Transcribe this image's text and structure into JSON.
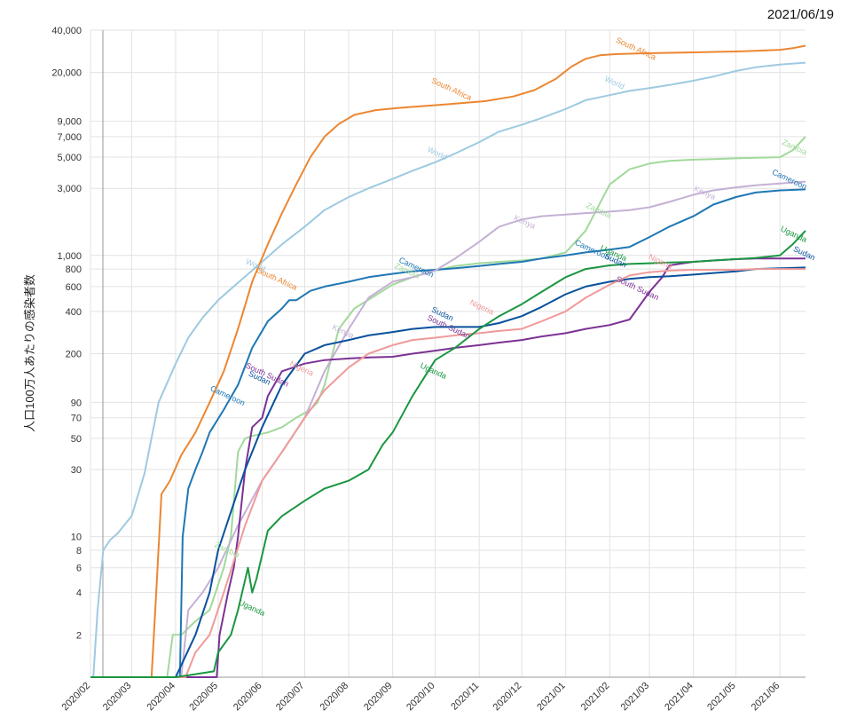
{
  "date_stamp": "2021/06/19",
  "chart_data": {
    "type": "line",
    "title": "",
    "xlabel": "",
    "ylabel": "人口100万人あたりの感染者数",
    "y_scale": "log",
    "ylim": [
      1,
      40000
    ],
    "xlim": [
      "2020-02-01",
      "2021-06-19"
    ],
    "grid": true,
    "legend": "none",
    "x_ticks": [
      "2020/02",
      "2020/03",
      "2020/04",
      "2020/05",
      "2020/06",
      "2020/07",
      "2020/08",
      "2020/09",
      "2020/10",
      "2020/11",
      "2020/12",
      "2021/01",
      "2021/02",
      "2021/03",
      "2021/04",
      "2021/05",
      "2021/06"
    ],
    "y_ticks": [
      2,
      4,
      6,
      8,
      10,
      30,
      50,
      70,
      90,
      200,
      400,
      600,
      800,
      1000,
      3000,
      5000,
      7000,
      9000,
      20000,
      40000
    ],
    "y_tick_labels": [
      "2",
      "4",
      "6",
      "8",
      "10",
      "30",
      "50",
      "70",
      "90",
      "200",
      "400",
      "600",
      "800",
      "1,000",
      "3,000",
      "5,000",
      "7,000",
      "9,000",
      "20,000",
      "40,000"
    ],
    "series": [
      {
        "name": "World",
        "color": "#9ecae1",
        "x": [
          "2020-02-01",
          "2020-02-03",
          "2020-02-06",
          "2020-02-10",
          "2020-02-15",
          "2020-02-20",
          "2020-03-01",
          "2020-03-10",
          "2020-03-20",
          "2020-04-01",
          "2020-04-10",
          "2020-04-20",
          "2020-05-01",
          "2020-05-15",
          "2020-06-01",
          "2020-06-15",
          "2020-07-01",
          "2020-07-15",
          "2020-08-01",
          "2020-08-15",
          "2020-09-01",
          "2020-09-15",
          "2020-10-01",
          "2020-10-15",
          "2020-11-01",
          "2020-11-15",
          "2020-12-01",
          "2020-12-15",
          "2021-01-01",
          "2021-01-15",
          "2021-02-01",
          "2021-02-15",
          "2021-03-01",
          "2021-03-15",
          "2021-04-01",
          "2021-04-15",
          "2021-05-01",
          "2021-05-15",
          "2021-06-01",
          "2021-06-19"
        ],
        "y": [
          1,
          1,
          3,
          8,
          9.5,
          10.5,
          14,
          28,
          90,
          170,
          260,
          360,
          480,
          640,
          900,
          1200,
          1600,
          2100,
          2600,
          3000,
          3500,
          4000,
          4600,
          5300,
          6400,
          7600,
          8500,
          9500,
          11000,
          12700,
          13800,
          14800,
          15500,
          16300,
          17500,
          18700,
          20500,
          21800,
          22800,
          23500
        ],
        "labels": [
          {
            "text": "World",
            "x": "2020-05-20",
            "y": 880
          },
          {
            "text": "World",
            "x": "2020-09-25",
            "y": 5500
          },
          {
            "text": "World",
            "x": "2021-01-28",
            "y": 17500
          }
        ]
      },
      {
        "name": "South Africa",
        "color": "#ec8631",
        "x": [
          "2020-02-01",
          "2020-03-15",
          "2020-03-18",
          "2020-03-22",
          "2020-03-28",
          "2020-04-05",
          "2020-04-15",
          "2020-04-25",
          "2020-05-05",
          "2020-05-15",
          "2020-05-25",
          "2020-06-05",
          "2020-06-15",
          "2020-06-25",
          "2020-07-05",
          "2020-07-15",
          "2020-07-25",
          "2020-08-05",
          "2020-08-20",
          "2020-09-05",
          "2020-09-25",
          "2020-10-15",
          "2020-11-05",
          "2020-11-25",
          "2020-12-10",
          "2020-12-25",
          "2021-01-05",
          "2021-01-15",
          "2021-01-25",
          "2021-02-05",
          "2021-02-20",
          "2021-03-15",
          "2021-04-01",
          "2021-04-15",
          "2021-05-01",
          "2021-05-15",
          "2021-06-01",
          "2021-06-10",
          "2021-06-19"
        ],
        "y": [
          1,
          1,
          3.5,
          20,
          25,
          38,
          55,
          90,
          150,
          300,
          650,
          1200,
          2000,
          3200,
          5000,
          7000,
          8600,
          10000,
          10800,
          11200,
          11600,
          12000,
          12500,
          13500,
          15000,
          18000,
          22000,
          25000,
          26500,
          27000,
          27300,
          27600,
          27800,
          28000,
          28200,
          28500,
          29000,
          29800,
          31000
        ],
        "labels": [
          {
            "text": "South Africa",
            "x": "2020-05-28",
            "y": 760
          },
          {
            "text": "South Africa",
            "x": "2020-09-28",
            "y": 17000
          },
          {
            "text": "South Africa",
            "x": "2021-02-05",
            "y": 33000
          }
        ]
      },
      {
        "name": "Zambia",
        "color": "#a1d99b",
        "x": [
          "2020-02-01",
          "2020-03-26",
          "2020-03-30",
          "2020-04-05",
          "2020-04-15",
          "2020-04-25",
          "2020-05-05",
          "2020-05-10",
          "2020-05-15",
          "2020-05-20",
          "2020-05-25",
          "2020-06-05",
          "2020-06-15",
          "2020-06-25",
          "2020-07-05",
          "2020-07-10",
          "2020-07-15",
          "2020-07-25",
          "2020-08-05",
          "2020-08-20",
          "2020-09-01",
          "2020-09-15",
          "2020-10-01",
          "2020-10-15",
          "2020-11-01",
          "2020-11-15",
          "2020-12-01",
          "2020-12-15",
          "2021-01-01",
          "2021-01-15",
          "2021-02-01",
          "2021-02-15",
          "2021-03-01",
          "2021-03-15",
          "2021-04-01",
          "2021-04-15",
          "2021-05-01",
          "2021-05-15",
          "2021-06-01",
          "2021-06-10",
          "2021-06-19"
        ],
        "y": [
          1,
          1,
          2,
          2,
          2.5,
          3,
          6,
          10,
          40,
          50,
          52,
          55,
          60,
          70,
          80,
          90,
          120,
          300,
          420,
          520,
          620,
          700,
          780,
          840,
          880,
          900,
          920,
          950,
          1050,
          1500,
          3200,
          4100,
          4500,
          4700,
          4800,
          4850,
          4900,
          4950,
          5000,
          5600,
          7000
        ],
        "labels": [
          {
            "text": "Zambia",
            "x": "2020-04-28",
            "y": 8.5
          },
          {
            "text": "Zambia",
            "x": "2020-09-02",
            "y": 820
          },
          {
            "text": "Zambia",
            "x": "2021-01-15",
            "y": 2200
          },
          {
            "text": "Zambia",
            "x": "2021-06-02",
            "y": 6200
          }
        ]
      },
      {
        "name": "Cameroon",
        "color": "#1f77b4",
        "x": [
          "2020-02-01",
          "2020-04-04",
          "2020-04-06",
          "2020-04-10",
          "2020-04-15",
          "2020-04-20",
          "2020-04-25",
          "2020-05-05",
          "2020-05-15",
          "2020-05-25",
          "2020-06-05",
          "2020-06-15",
          "2020-06-20",
          "2020-06-25",
          "2020-07-05",
          "2020-07-15",
          "2020-08-01",
          "2020-08-15",
          "2020-09-01",
          "2020-09-15",
          "2020-10-01",
          "2020-10-15",
          "2020-11-01",
          "2020-11-15",
          "2020-12-01",
          "2020-12-15",
          "2021-01-01",
          "2021-01-15",
          "2021-02-01",
          "2021-02-15",
          "2021-03-01",
          "2021-03-15",
          "2021-04-01",
          "2021-04-15",
          "2021-05-01",
          "2021-05-15",
          "2021-06-01",
          "2021-06-19"
        ],
        "y": [
          1,
          1,
          10,
          22,
          30,
          40,
          55,
          80,
          120,
          220,
          340,
          420,
          480,
          480,
          560,
          600,
          650,
          700,
          740,
          770,
          790,
          810,
          840,
          870,
          900,
          950,
          1000,
          1050,
          1100,
          1150,
          1350,
          1600,
          1900,
          2300,
          2600,
          2800,
          2900,
          2950
        ],
        "labels": [
          {
            "text": "Cameroon",
            "x": "2020-04-25",
            "y": 110
          },
          {
            "text": "Cameroon",
            "x": "2020-09-05",
            "y": 900
          },
          {
            "text": "Cameroon",
            "x": "2021-01-07",
            "y": 1200
          },
          {
            "text": "Cameroon",
            "x": "2021-05-26",
            "y": 3800
          }
        ]
      },
      {
        "name": "Kenya",
        "color": "#c5b0d5",
        "x": [
          "2020-02-01",
          "2020-04-05",
          "2020-04-10",
          "2020-04-20",
          "2020-05-01",
          "2020-05-15",
          "2020-06-01",
          "2020-06-15",
          "2020-07-01",
          "2020-07-15",
          "2020-08-01",
          "2020-08-15",
          "2020-09-01",
          "2020-09-15",
          "2020-10-01",
          "2020-10-15",
          "2020-11-01",
          "2020-11-15",
          "2020-12-01",
          "2020-12-15",
          "2021-01-01",
          "2021-01-15",
          "2021-02-01",
          "2021-02-15",
          "2021-03-01",
          "2021-03-15",
          "2021-04-01",
          "2021-04-15",
          "2021-05-01",
          "2021-05-15",
          "2021-06-01",
          "2021-06-19"
        ],
        "y": [
          1,
          1,
          3,
          4,
          6,
          12,
          25,
          40,
          70,
          150,
          300,
          500,
          650,
          700,
          780,
          950,
          1250,
          1600,
          1800,
          1900,
          1950,
          2000,
          2050,
          2100,
          2200,
          2400,
          2700,
          2900,
          3050,
          3150,
          3250,
          3350
        ],
        "labels": [
          {
            "text": "Kenya",
            "x": "2020-07-20",
            "y": 300
          },
          {
            "text": "Kenya",
            "x": "2020-11-25",
            "y": 1800
          },
          {
            "text": "Kenya",
            "x": "2021-04-01",
            "y": 2900
          }
        ]
      },
      {
        "name": "South Sudan",
        "color": "#7b3294",
        "x": [
          "2020-02-01",
          "2020-04-30",
          "2020-05-02",
          "2020-05-08",
          "2020-05-12",
          "2020-05-15",
          "2020-05-20",
          "2020-05-25",
          "2020-06-01",
          "2020-06-05",
          "2020-06-15",
          "2020-07-01",
          "2020-07-15",
          "2020-08-01",
          "2020-08-15",
          "2020-09-01",
          "2020-09-15",
          "2020-10-01",
          "2020-10-15",
          "2020-11-01",
          "2020-11-15",
          "2020-12-01",
          "2020-12-15",
          "2021-01-01",
          "2021-01-15",
          "2021-02-01",
          "2021-02-15",
          "2021-03-01",
          "2021-03-10",
          "2021-03-15",
          "2021-04-01",
          "2021-04-15",
          "2021-05-01",
          "2021-05-15",
          "2021-06-01",
          "2021-06-19"
        ],
        "y": [
          1,
          1,
          2,
          4,
          6,
          10,
          30,
          60,
          70,
          100,
          150,
          170,
          180,
          185,
          188,
          190,
          200,
          210,
          220,
          230,
          240,
          250,
          265,
          280,
          300,
          320,
          350,
          550,
          700,
          850,
          900,
          920,
          940,
          950,
          950,
          950
        ],
        "labels": [
          {
            "text": "South Sudan",
            "x": "2020-05-20",
            "y": 160
          },
          {
            "text": "South Sudan",
            "x": "2020-09-25",
            "y": 350
          },
          {
            "text": "South Sudan",
            "x": "2021-02-05",
            "y": 660
          }
        ]
      },
      {
        "name": "Sudan",
        "color": "#08519c",
        "x": [
          "2020-02-01",
          "2020-04-01",
          "2020-04-15",
          "2020-04-25",
          "2020-05-01",
          "2020-05-10",
          "2020-05-20",
          "2020-06-01",
          "2020-06-15",
          "2020-07-01",
          "2020-07-15",
          "2020-08-01",
          "2020-08-15",
          "2020-09-01",
          "2020-09-15",
          "2020-10-01",
          "2020-10-15",
          "2020-11-01",
          "2020-11-15",
          "2020-12-01",
          "2020-12-15",
          "2021-01-01",
          "2021-01-15",
          "2021-02-01",
          "2021-02-15",
          "2021-03-01",
          "2021-03-15",
          "2021-04-01",
          "2021-04-15",
          "2021-05-01",
          "2021-05-15",
          "2021-06-01",
          "2021-06-19"
        ],
        "y": [
          1,
          1,
          2,
          4,
          8,
          15,
          30,
          60,
          120,
          200,
          230,
          250,
          270,
          285,
          300,
          310,
          310,
          310,
          330,
          370,
          430,
          530,
          600,
          650,
          680,
          700,
          710,
          730,
          750,
          770,
          800,
          810,
          820
        ],
        "labels": [
          {
            "text": "Sudan",
            "x": "2020-05-22",
            "y": 140
          },
          {
            "text": "Sudan",
            "x": "2020-09-28",
            "y": 400
          },
          {
            "text": "Sudan",
            "x": "2021-01-28",
            "y": 960
          },
          {
            "text": "Sudan",
            "x": "2021-06-10",
            "y": 1080
          }
        ]
      },
      {
        "name": "Nigeria",
        "color": "#ef9a9a",
        "x": [
          "2020-02-01",
          "2020-04-08",
          "2020-04-15",
          "2020-04-25",
          "2020-05-05",
          "2020-05-20",
          "2020-06-01",
          "2020-06-15",
          "2020-07-01",
          "2020-07-15",
          "2020-08-01",
          "2020-08-15",
          "2020-09-01",
          "2020-09-15",
          "2020-10-01",
          "2020-10-15",
          "2020-11-01",
          "2020-11-15",
          "2020-12-01",
          "2020-12-15",
          "2021-01-01",
          "2021-01-15",
          "2021-02-01",
          "2021-02-15",
          "2021-03-01",
          "2021-03-15",
          "2021-04-01",
          "2021-04-15",
          "2021-05-01",
          "2021-05-15",
          "2021-06-01",
          "2021-06-19"
        ],
        "y": [
          1,
          1,
          1.5,
          2,
          4,
          12,
          25,
          40,
          70,
          110,
          160,
          200,
          230,
          250,
          260,
          270,
          280,
          290,
          300,
          340,
          400,
          500,
          620,
          720,
          760,
          780,
          790,
          790,
          790,
          800,
          800,
          800
        ],
        "labels": [
          {
            "text": "Nigeria",
            "x": "2020-06-20",
            "y": 165
          },
          {
            "text": "Nigeria",
            "x": "2020-10-25",
            "y": 450
          },
          {
            "text": "Nigeria",
            "x": "2021-02-28",
            "y": 950
          }
        ]
      },
      {
        "name": "Uganda",
        "color": "#1a9641",
        "x": [
          "2020-02-01",
          "2020-04-01",
          "2020-04-15",
          "2020-04-28",
          "2020-05-01",
          "2020-05-10",
          "2020-05-15",
          "2020-05-22",
          "2020-05-25",
          "2020-05-28",
          "2020-06-05",
          "2020-06-15",
          "2020-07-01",
          "2020-07-15",
          "2020-08-01",
          "2020-08-15",
          "2020-08-25",
          "2020-09-01",
          "2020-09-15",
          "2020-10-01",
          "2020-10-15",
          "2020-11-01",
          "2020-11-15",
          "2020-12-01",
          "2020-12-15",
          "2021-01-01",
          "2021-01-15",
          "2021-02-01",
          "2021-02-15",
          "2021-03-01",
          "2021-03-15",
          "2021-04-01",
          "2021-04-15",
          "2021-05-01",
          "2021-05-15",
          "2021-06-01",
          "2021-06-10",
          "2021-06-19"
        ],
        "y": [
          1,
          1,
          1.05,
          1.1,
          1.5,
          2,
          3,
          6,
          4,
          5,
          11,
          14,
          18,
          22,
          25,
          30,
          45,
          55,
          100,
          180,
          220,
          300,
          370,
          450,
          550,
          700,
          800,
          850,
          870,
          880,
          890,
          900,
          920,
          940,
          960,
          1000,
          1200,
          1500
        ],
        "labels": [
          {
            "text": "Uganda",
            "x": "2020-05-15",
            "y": 3.3
          },
          {
            "text": "Uganda",
            "x": "2020-09-20",
            "y": 160
          },
          {
            "text": "Uganda",
            "x": "2021-01-25",
            "y": 1100
          },
          {
            "text": "Uganda",
            "x": "2021-06-01",
            "y": 1500
          }
        ]
      }
    ]
  }
}
